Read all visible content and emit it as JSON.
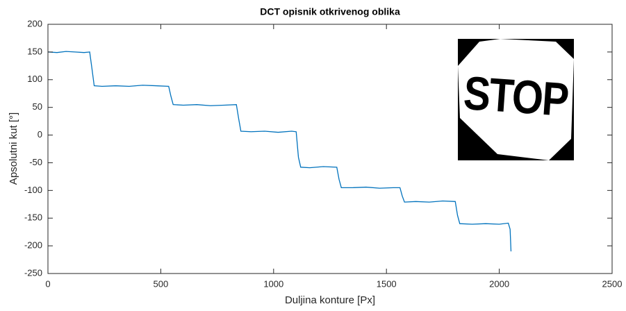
{
  "chart_data": {
    "type": "line",
    "title": "DCT opisnik otkrivenog oblika",
    "xlabel": "Duljina konture [Px]",
    "ylabel": "Apsolutni kut [°]",
    "inset_text": "STOP",
    "xlim": [
      0,
      2500
    ],
    "xticks": [
      0,
      500,
      1000,
      1500,
      2000,
      2500
    ],
    "ylim": [
      -250,
      200
    ],
    "yticks": [
      -250,
      -200,
      -150,
      -100,
      -50,
      0,
      50,
      100,
      150,
      200
    ],
    "series": [
      {
        "color": "#0072bd",
        "x": [
          0,
          40,
          80,
          120,
          160,
          185,
          195,
          205,
          240,
          300,
          360,
          420,
          480,
          535,
          545,
          555,
          600,
          660,
          720,
          780,
          835,
          845,
          855,
          900,
          960,
          1020,
          1080,
          1100,
          1110,
          1120,
          1160,
          1220,
          1280,
          1290,
          1300,
          1350,
          1410,
          1470,
          1530,
          1560,
          1570,
          1580,
          1630,
          1690,
          1750,
          1805,
          1815,
          1825,
          1880,
          1940,
          2000,
          2040,
          2048,
          2052
        ],
        "values": [
          150,
          149,
          151,
          150,
          149,
          150,
          120,
          89,
          88,
          89,
          88,
          90,
          89,
          88,
          70,
          55,
          54,
          55,
          53,
          54,
          55,
          30,
          7,
          6,
          7,
          5,
          7,
          6,
          -40,
          -58,
          -59,
          -57,
          -58,
          -80,
          -95,
          -95,
          -94,
          -96,
          -95,
          -95,
          -110,
          -121,
          -120,
          -121,
          -119,
          -120,
          -145,
          -160,
          -161,
          -160,
          -161,
          -159,
          -170,
          -210
        ]
      }
    ]
  }
}
